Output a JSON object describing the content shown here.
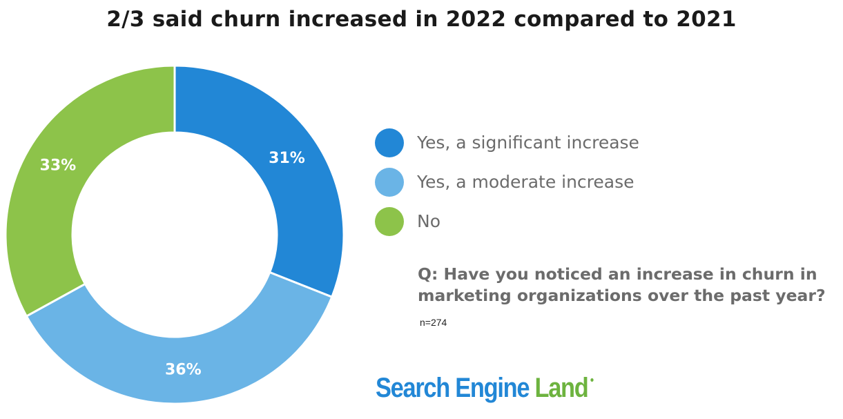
{
  "chart_data": {
    "type": "pie",
    "title": "2/3 said churn increased in 2022 compared to 2021",
    "donut": true,
    "legend_position": "right",
    "slices": [
      {
        "label": "Yes, a significant increase",
        "value": 31,
        "display": "31%",
        "color": "#2287d6"
      },
      {
        "label": "Yes, a moderate increase",
        "value": 36,
        "display": "36%",
        "color": "#6ab4e6"
      },
      {
        "label": "No",
        "value": 33,
        "display": "33%",
        "color": "#8dc34a"
      }
    ]
  },
  "colors": {
    "title": "#1a1a1a",
    "legend_text": "#6b6b6b",
    "question_text": "#6b6b6b",
    "sample_text": "#222222",
    "logo_blue": "#2287d6",
    "logo_green": "#6db33f",
    "slice_label": "#ffffff",
    "slice_border": "#ffffff"
  },
  "question": "Q: Have you noticed an increase in churn in marketing organizations over the past year?",
  "sample_size": "n=274",
  "logo": {
    "part1": "Search Engine",
    "part2": "Land",
    "mark": "logo-dot-icon"
  }
}
